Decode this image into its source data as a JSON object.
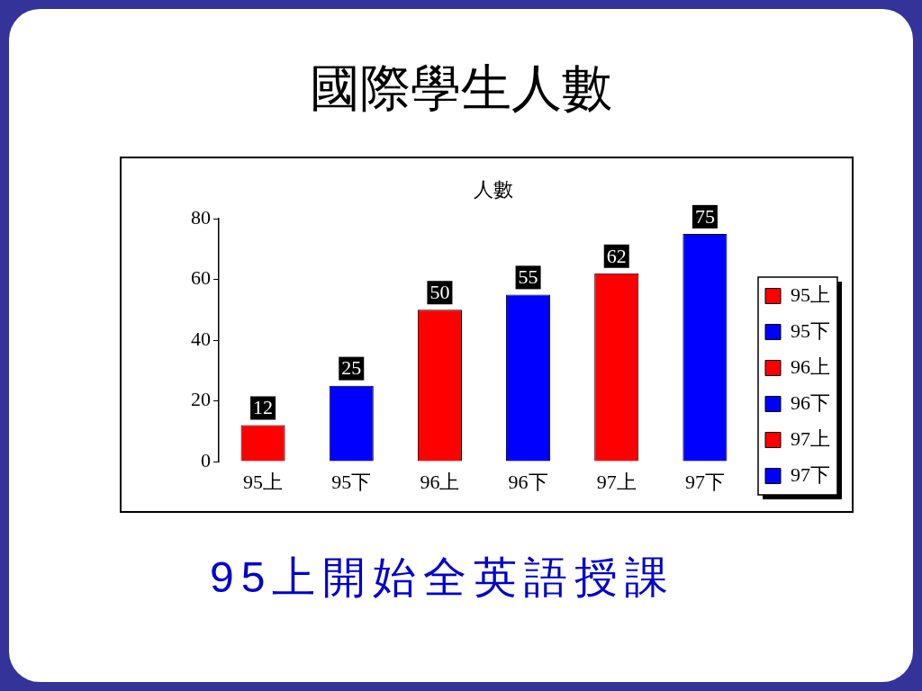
{
  "chart_data": {
    "type": "bar",
    "title": "國際學生人數",
    "ylabel": "人數",
    "categories": [
      "95上",
      "95下",
      "96上",
      "96下",
      "97上",
      "97下"
    ],
    "series": [
      {
        "name": "95上",
        "color": "#ff0000",
        "values": [
          12,
          null,
          null,
          null,
          null,
          null
        ]
      },
      {
        "name": "95下",
        "color": "#0000ff",
        "values": [
          null,
          25,
          null,
          null,
          null,
          null
        ]
      },
      {
        "name": "96上",
        "color": "#ff0000",
        "values": [
          null,
          null,
          50,
          null,
          null,
          null
        ]
      },
      {
        "name": "96下",
        "color": "#0000ff",
        "values": [
          null,
          null,
          null,
          55,
          null,
          null
        ]
      },
      {
        "name": "97上",
        "color": "#ff0000",
        "values": [
          null,
          null,
          null,
          null,
          62,
          null
        ]
      },
      {
        "name": "97下",
        "color": "#0000ff",
        "values": [
          null,
          null,
          null,
          null,
          null,
          75
        ]
      }
    ],
    "ylim": [
      0,
      80
    ],
    "yticks": [
      0,
      20,
      40,
      60,
      80
    ],
    "data_labels": true,
    "legend": "right",
    "annotations": [
      "95上開始全英語授課"
    ]
  }
}
